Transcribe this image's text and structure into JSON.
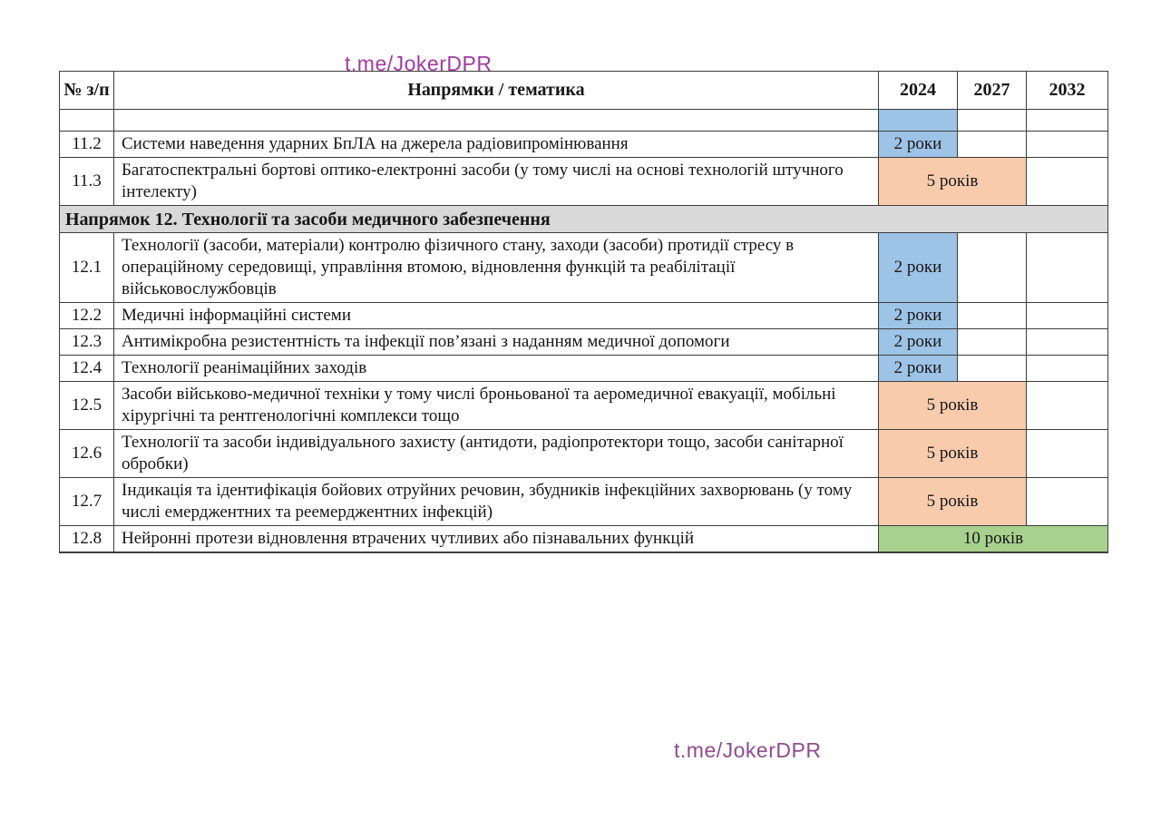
{
  "watermark": {
    "text": "t.me/JokerDPR"
  },
  "colors": {
    "timeline_blue": "#9DC3E6",
    "timeline_orange": "#F8CBAD",
    "timeline_green": "#A9D18E",
    "section_bg": "#D9D9D9",
    "watermark_top": "#A03CA0",
    "watermark_bottom": "#8E4D8E",
    "border": "#3d3d3d"
  },
  "table": {
    "headers": {
      "num": "№ з/п",
      "topic": "Напрямки / тематика",
      "years": [
        "2024",
        "2027",
        "2032"
      ]
    },
    "rows": [
      {
        "kind": "continuation",
        "num": "",
        "text": "",
        "timeline": {
          "label": "",
          "color": "blue",
          "span": 1
        }
      },
      {
        "kind": "item",
        "num": "11.2",
        "text": "Системи наведення ударних БпЛА на джерела радіовипромінювання",
        "timeline": {
          "label": "2 роки",
          "color": "blue",
          "span": 1
        }
      },
      {
        "kind": "item",
        "num": "11.3",
        "text": "Багатоспектральні бортові оптико-електронні засоби (у тому числі на основі технологій штучного інтелекту)",
        "timeline": {
          "label": "5 років",
          "color": "orange",
          "span": 2
        }
      },
      {
        "kind": "section",
        "section": "Напрямок 12. Технології та засоби медичного забезпечення"
      },
      {
        "kind": "item",
        "num": "12.1",
        "text": "Технології (засоби, матеріали) контролю фізичного стану, заходи (засоби) протидії стресу в операційному середовищі, управління втомою, відновлення функцій та реабілітації військовослужбовців",
        "timeline": {
          "label": "2 роки",
          "color": "blue",
          "span": 1
        }
      },
      {
        "kind": "item",
        "num": "12.2",
        "text": "Медичні інформаційні системи",
        "timeline": {
          "label": "2 роки",
          "color": "blue",
          "span": 1
        }
      },
      {
        "kind": "item",
        "num": "12.3",
        "text": "Антимікробна резистентність та інфекції пов’язані з наданням медичної допомоги",
        "timeline": {
          "label": "2 роки",
          "color": "blue",
          "span": 1
        }
      },
      {
        "kind": "item",
        "num": "12.4",
        "text": "Технології реанімаційних заходів",
        "timeline": {
          "label": "2 роки",
          "color": "blue",
          "span": 1
        }
      },
      {
        "kind": "item",
        "num": "12.5",
        "text": "Засоби військово-медичної техніки у тому числі броньованої та аеромедичної евакуації, мобільні хірургічні та рентгенологічні комплекси тощо",
        "timeline": {
          "label": "5 років",
          "color": "orange",
          "span": 2
        }
      },
      {
        "kind": "item",
        "num": "12.6",
        "text": "Технології та засоби індивідуального захисту (антидоти, радіопротектори тощо, засоби санітарної обробки)",
        "timeline": {
          "label": "5 років",
          "color": "orange",
          "span": 2
        }
      },
      {
        "kind": "item",
        "num": "12.7",
        "text": "Індикація та ідентифікація бойових отруйних речовин, збудників інфекційних захворювань (у тому числі емерджентних та реемерджентних інфекцій)",
        "timeline": {
          "label": "5 років",
          "color": "orange",
          "span": 2
        }
      },
      {
        "kind": "item",
        "num": "12.8",
        "text": "Нейронні протези відновлення втрачених чутливих або пізнавальних функцій",
        "timeline": {
          "label": "10 років",
          "color": "green",
          "span": 3
        }
      }
    ]
  }
}
